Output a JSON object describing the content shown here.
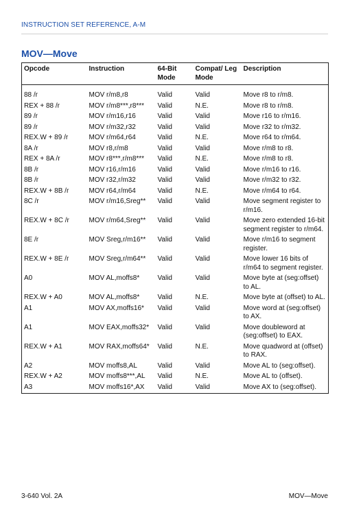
{
  "header": {
    "section": "INSTRUCTION SET REFERENCE, A-M"
  },
  "title": "MOV—Move",
  "table": {
    "columns": [
      "Opcode",
      "Instruction",
      "64-Bit Mode",
      "Compat/ Leg Mode",
      "Description"
    ],
    "rows": [
      [
        "88 /r",
        "MOV r/m8,r8",
        "Valid",
        "Valid",
        "Move r8 to r/m8."
      ],
      [
        "REX + 88 /r",
        "MOV r/m8***,r8***",
        "Valid",
        "N.E.",
        "Move r8 to r/m8."
      ],
      [
        "89 /r",
        "MOV r/m16,r16",
        "Valid",
        "Valid",
        "Move r16 to r/m16."
      ],
      [
        "89 /r",
        "MOV r/m32,r32",
        "Valid",
        "Valid",
        "Move r32 to r/m32."
      ],
      [
        "REX.W + 89 /r",
        "MOV r/m64,r64",
        "Valid",
        "N.E.",
        "Move r64 to r/m64."
      ],
      [
        "8A /r",
        "MOV r8,r/m8",
        "Valid",
        "Valid",
        "Move r/m8 to r8."
      ],
      [
        "REX + 8A /r",
        "MOV r8***,r/m8***",
        "Valid",
        "N.E.",
        "Move r/m8 to r8."
      ],
      [
        "8B /r",
        "MOV r16,r/m16",
        "Valid",
        "Valid",
        "Move r/m16 to r16."
      ],
      [
        "8B /r",
        "MOV r32,r/m32",
        "Valid",
        "Valid",
        "Move r/m32 to r32."
      ],
      [
        "REX.W + 8B /r",
        "MOV r64,r/m64",
        "Valid",
        "N.E.",
        "Move r/m64 to r64."
      ],
      [
        "8C /r",
        "MOV r/m16,Sreg**",
        "Valid",
        "Valid",
        "Move segment register to r/m16."
      ],
      [
        "REX.W + 8C /r",
        "MOV r/m64,Sreg**",
        "Valid",
        "Valid",
        "Move zero extended 16-bit segment register to r/m64."
      ],
      [
        "8E /r",
        "MOV Sreg,r/m16**",
        "Valid",
        "Valid",
        "Move r/m16 to segment register."
      ],
      [
        "REX.W + 8E /r",
        "MOV Sreg,r/m64**",
        "Valid",
        "Valid",
        "Move lower 16 bits of r/m64 to segment register."
      ],
      [
        "A0",
        "MOV AL,moffs8*",
        "Valid",
        "Valid",
        "Move byte at (seg:offset) to AL."
      ],
      [
        "REX.W + A0",
        "MOV AL,moffs8*",
        "Valid",
        "N.E.",
        "Move byte at (offset) to AL."
      ],
      [
        "A1",
        "MOV AX,moffs16*",
        "Valid",
        "Valid",
        "Move word at (seg:offset) to AX."
      ],
      [
        "A1",
        "MOV EAX,moffs32*",
        "Valid",
        "Valid",
        "Move doubleword at (seg:offset) to EAX."
      ],
      [
        "REX.W + A1",
        "MOV RAX,moffs64*",
        "Valid",
        "N.E.",
        "Move quadword at (offset) to RAX."
      ],
      [
        "A2",
        "MOV moffs8,AL",
        "Valid",
        "Valid",
        "Move AL to (seg:offset)."
      ],
      [
        "REX.W + A2",
        "MOV moffs8***,AL",
        "Valid",
        "N.E.",
        "Move AL to (offset)."
      ],
      [
        "A3",
        "MOV moffs16*,AX",
        "Valid",
        "Valid",
        "Move AX to (seg:offset)."
      ]
    ]
  },
  "footer": {
    "left": "3-640   Vol. 2A",
    "right": "MOV—Move"
  }
}
